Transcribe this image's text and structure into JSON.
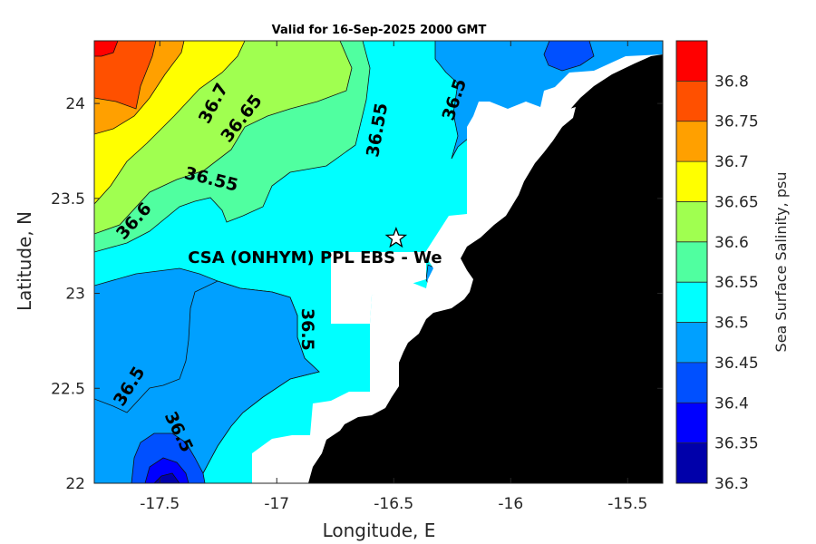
{
  "chart_data": {
    "type": "heatmap",
    "subtype": "filled-contour map",
    "title": "Valid for 16-Sep-2025 2000 GMT",
    "xlabel": "Longitude, E",
    "ylabel": "Latitude, N",
    "xlim": [
      -17.78,
      -15.35
    ],
    "ylim": [
      22.0,
      24.33
    ],
    "x_ticks": [
      -17.5,
      -17,
      -16.5,
      -16,
      -15.5
    ],
    "x_tick_labels": [
      "-17.5",
      "-17",
      "-16.5",
      "-16",
      "-15.5"
    ],
    "y_ticks": [
      22,
      22.5,
      23,
      23.5,
      24
    ],
    "y_tick_labels": [
      "22",
      "22.5",
      "23",
      "23.5",
      "24"
    ],
    "colorbar": {
      "label": "Sea Surface Salinity, psu",
      "levels": [
        36.3,
        36.35,
        36.4,
        36.45,
        36.5,
        36.55,
        36.6,
        36.65,
        36.7,
        36.75,
        36.8,
        36.85
      ],
      "tick_labels": [
        "36.3",
        "36.35",
        "36.4",
        "36.45",
        "36.5",
        "36.55",
        "36.6",
        "36.65",
        "36.7",
        "36.75",
        "36.8"
      ],
      "colors": [
        "#0000aa",
        "#0000ff",
        "#0050ff",
        "#00a0ff",
        "#00ffff",
        "#50ffa0",
        "#a0ff50",
        "#ffff00",
        "#ffa000",
        "#ff5000",
        "#ff0000"
      ]
    },
    "contour_labels": [
      {
        "text": "36.7",
        "lon": -17.27,
        "lat": 24.0,
        "angle": -62
      },
      {
        "text": "36.65",
        "lon": -17.15,
        "lat": 23.92,
        "angle": -52
      },
      {
        "text": "36.55",
        "lon": -17.28,
        "lat": 23.6,
        "angle": 14
      },
      {
        "text": "36.6",
        "lon": -17.61,
        "lat": 23.38,
        "angle": -48
      },
      {
        "text": "36.55",
        "lon": -16.57,
        "lat": 23.86,
        "angle": -80
      },
      {
        "text": "36.5",
        "lon": -16.24,
        "lat": 24.02,
        "angle": -72
      },
      {
        "text": "36.5",
        "lon": -16.87,
        "lat": 22.81,
        "angle": 90
      },
      {
        "text": "36.5",
        "lon": -17.63,
        "lat": 22.51,
        "angle": -58
      },
      {
        "text": "36.5",
        "lon": -17.42,
        "lat": 22.27,
        "angle": 64
      }
    ],
    "site_annotation": {
      "text": "CSA (ONHYM) PPL EBS  - We",
      "lon": -17.38,
      "lat": 23.19,
      "marker": "star",
      "marker_lon": -16.49,
      "marker_lat": 23.29
    },
    "land_color": "#000000",
    "nodata_color": "#ffffff",
    "grid": false
  }
}
